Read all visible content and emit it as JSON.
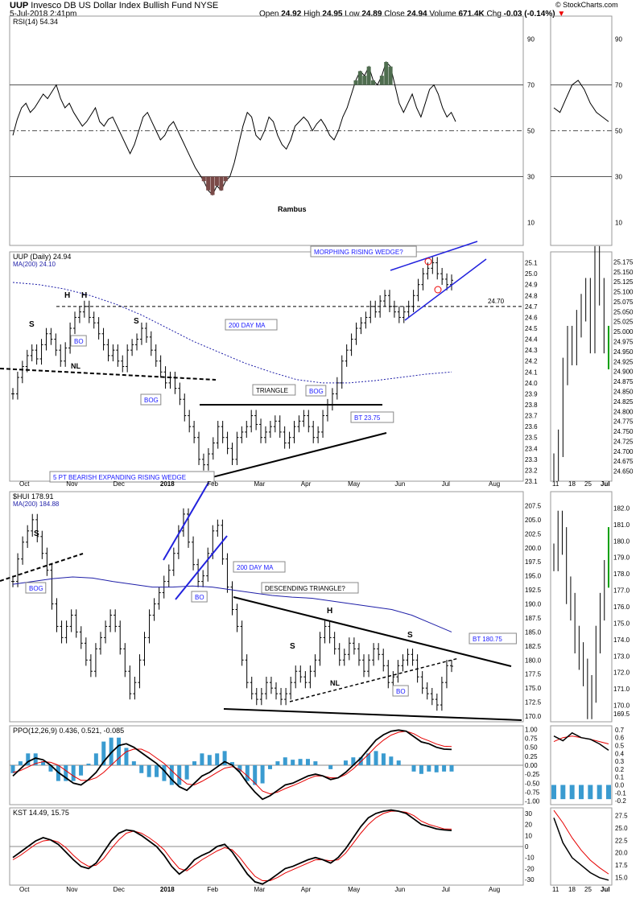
{
  "header": {
    "symbol": "UUP",
    "name": "Invesco DB US Dollar Index Bullish Fund",
    "exchange": "NYSE",
    "date": "5-Jul-2018 2:41pm",
    "open_label": "Open",
    "open": "24.92",
    "high_label": "High",
    "high": "24.95",
    "low_label": "Low",
    "low": "24.89",
    "close_label": "Close",
    "close": "24.94",
    "volume_label": "Volume",
    "volume": "671.4K",
    "chg_label": "Chg",
    "chg": "-0.03 (-0.14%)",
    "watermark": "© StockCharts.com"
  },
  "colors": {
    "price": "#000000",
    "ma200": "#1f1fa8",
    "rsi_fill_up": "#4f6d4f",
    "rsi_fill_down": "#7a4a48",
    "annot_text": "#1a1aff",
    "ppo_signal": "#e60000",
    "hist": "#3a9bd0",
    "grid": "#cccccc",
    "green_bar": "#00a000"
  },
  "x_axis": {
    "ticks": [
      "Oct",
      "Nov",
      "Dec",
      "2018",
      "Feb",
      "Mar",
      "Apr",
      "May",
      "Jun",
      "Jul",
      "Aug"
    ],
    "right_ticks": [
      "11",
      "18",
      "25",
      "Jul"
    ]
  },
  "chart_data": [
    {
      "type": "line",
      "id": "rsi",
      "title": "RSI(14) 54.34",
      "y_ticks": [
        "90",
        "70",
        "50",
        "30",
        "10"
      ],
      "ylim": [
        0,
        100
      ],
      "levels": [
        70,
        50,
        30
      ],
      "values": [
        48,
        55,
        60,
        62,
        58,
        60,
        63,
        66,
        64,
        67,
        70,
        64,
        60,
        62,
        58,
        55,
        52,
        54,
        57,
        60,
        54,
        52,
        55,
        56,
        52,
        48,
        44,
        40,
        44,
        50,
        56,
        58,
        54,
        50,
        46,
        48,
        52,
        54,
        50,
        46,
        42,
        38,
        34,
        31,
        28,
        24,
        22,
        26,
        24,
        28,
        30,
        36,
        44,
        52,
        58,
        56,
        48,
        46,
        50,
        56,
        54,
        48,
        44,
        42,
        46,
        52,
        54,
        56,
        54,
        50,
        53,
        55,
        52,
        48,
        46,
        50,
        56,
        60,
        66,
        72,
        76,
        74,
        78,
        72,
        70,
        74,
        80,
        78,
        70,
        62,
        58,
        62,
        66,
        60,
        56,
        62,
        68,
        70,
        66,
        60,
        56,
        58,
        54
      ],
      "right_values": [
        60,
        58,
        64,
        70,
        72,
        68,
        62,
        58,
        56,
        54
      ],
      "annotations": [
        "Rambus"
      ]
    },
    {
      "type": "ohlc",
      "id": "uup",
      "title": "UUP (Daily) 24.94",
      "ma_label": "MA(200) 24.10",
      "ylim": [
        23.1,
        25.2
      ],
      "y_ticks": [
        "25.1",
        "25.0",
        "24.9",
        "24.8",
        "24.7",
        "24.6",
        "24.5",
        "24.4",
        "24.3",
        "24.2",
        "24.1",
        "24.0",
        "23.9",
        "23.8",
        "23.7",
        "23.6",
        "23.5",
        "23.4",
        "23.3",
        "23.2",
        "23.1"
      ],
      "closes": [
        23.9,
        24.05,
        24.15,
        24.25,
        24.3,
        24.22,
        24.35,
        24.45,
        24.4,
        24.3,
        24.2,
        24.32,
        24.5,
        24.6,
        24.65,
        24.7,
        24.6,
        24.55,
        24.45,
        24.35,
        24.25,
        24.3,
        24.2,
        24.15,
        24.3,
        24.35,
        24.4,
        24.5,
        24.42,
        24.3,
        24.2,
        24.1,
        24.0,
        24.05,
        23.95,
        23.85,
        23.7,
        23.6,
        23.5,
        23.3,
        23.25,
        23.35,
        23.45,
        23.6,
        23.5,
        23.4,
        23.3,
        23.5,
        23.55,
        23.6,
        23.7,
        23.62,
        23.5,
        23.55,
        23.6,
        23.65,
        23.55,
        23.45,
        23.5,
        23.6,
        23.65,
        23.7,
        23.6,
        23.5,
        23.55,
        23.7,
        23.8,
        23.9,
        24.0,
        24.2,
        24.3,
        24.4,
        24.5,
        24.55,
        24.6,
        24.7,
        24.65,
        24.75,
        24.8,
        24.7,
        24.65,
        24.6,
        24.65,
        24.7,
        24.8,
        24.9,
        25.0,
        25.05,
        25.1,
        25.0,
        24.95,
        24.9,
        24.94
      ],
      "ma200": [
        24.92,
        24.9,
        24.86,
        24.8,
        24.72,
        24.62,
        24.5,
        24.38,
        24.28,
        24.18,
        24.1,
        24.03,
        24.0,
        24.0,
        24.02,
        24.05,
        24.08,
        24.1
      ],
      "right_ylim": [
        24.625,
        25.2
      ],
      "right_y_ticks": [
        "25.175",
        "25.150",
        "25.125",
        "25.100",
        "25.075",
        "25.050",
        "25.025",
        "25.000",
        "24.975",
        "24.950",
        "24.925",
        "24.900",
        "24.875",
        "24.850",
        "24.825",
        "24.800",
        "24.775",
        "24.750",
        "24.725",
        "24.700",
        "24.675",
        "24.650"
      ],
      "right_closes": [
        24.66,
        24.72,
        24.9,
        24.98,
        24.95,
        25.02,
        25.06,
        25.1,
        24.98,
        25.18,
        25.1,
        24.98,
        24.94
      ],
      "level_label": "24.70",
      "annotations": [
        "MORPHING RISING WEDGE?",
        "200 DAY MA",
        "BO",
        "BOG",
        "NL",
        "TRIANGLE",
        "BOG",
        "BT 23.75",
        "S",
        "H",
        "H",
        "S"
      ]
    },
    {
      "type": "ohlc",
      "id": "hui",
      "title": "$HUI 178.91",
      "ma_label": "MA(200) 184.88",
      "ylim": [
        169,
        210
      ],
      "y_ticks": [
        "207.5",
        "205.0",
        "202.5",
        "200.0",
        "197.5",
        "195.0",
        "192.5",
        "190.0",
        "187.5",
        "185.0",
        "182.5",
        "180.0",
        "177.5",
        "175.0",
        "172.5",
        "170.0"
      ],
      "closes": [
        194,
        198,
        201,
        203,
        205,
        202,
        199,
        196,
        190,
        186,
        184,
        186,
        188,
        185,
        183,
        180,
        178,
        182,
        184,
        186,
        188,
        186,
        182,
        178,
        174,
        176,
        180,
        184,
        188,
        190,
        192,
        194,
        196,
        199,
        203,
        206,
        201,
        197,
        194,
        195,
        199,
        203,
        204,
        198,
        193,
        189,
        186,
        180,
        176,
        174,
        173,
        174,
        176,
        175,
        174,
        173,
        174,
        176,
        178,
        177,
        176,
        178,
        180,
        184,
        186,
        184,
        182,
        180,
        181,
        183,
        182,
        180,
        178,
        180,
        182,
        181,
        179,
        176,
        177,
        179,
        180,
        181,
        180,
        177,
        175,
        174,
        173,
        172,
        176,
        179,
        178.9
      ],
      "ma200": [
        193.5,
        194,
        194.5,
        194.8,
        194.6,
        194,
        193.5,
        193,
        193,
        193.2,
        193,
        192.5,
        192,
        191.5,
        191.2,
        191,
        190.5,
        190,
        189.5,
        189,
        188,
        186.5,
        185
      ],
      "right_ylim": [
        169,
        183
      ],
      "right_y_ticks": [
        "182.0",
        "181.0",
        "180.0",
        "179.0",
        "178.0",
        "177.0",
        "176.0",
        "175.0",
        "174.0",
        "173.0",
        "172.0",
        "171.0",
        "170.0",
        "169.5"
      ],
      "right_closes": [
        179,
        181,
        180,
        177,
        176,
        174,
        173,
        172,
        170,
        171,
        174,
        176,
        178,
        180
      ],
      "annotations": [
        "5 PT BEARISH EXPANDING RISING WEDGE",
        "200 DAY MA",
        "DESCENDING TRIANGLE?",
        "BT 180.75",
        "BOG",
        "BO",
        "BO",
        "S",
        "H",
        "S",
        "S",
        "NL"
      ]
    },
    {
      "type": "line",
      "id": "ppo",
      "title": "PPO(12,26,9) 0.436, 0.521, -0.085",
      "ylim": [
        -1.1,
        1.1
      ],
      "y_ticks": [
        "1.00",
        "0.75",
        "0.50",
        "0.25",
        "0.00",
        "-0.25",
        "-0.50",
        "-0.75",
        "-1.00"
      ],
      "right_y_ticks": [
        "0.7",
        "0.6",
        "0.5",
        "0.4",
        "0.3",
        "0.2",
        "0.1",
        "0.0",
        "-0.1",
        "-0.2"
      ],
      "ppo": [
        -0.3,
        -0.1,
        0.1,
        0.2,
        0.15,
        0.0,
        -0.2,
        -0.35,
        -0.5,
        -0.55,
        -0.4,
        -0.2,
        0.1,
        0.35,
        0.55,
        0.6,
        0.5,
        0.35,
        0.2,
        0.05,
        -0.15,
        -0.4,
        -0.6,
        -0.7,
        -0.5,
        -0.3,
        -0.2,
        -0.05,
        0.1,
        0.0,
        -0.2,
        -0.5,
        -0.75,
        -0.95,
        -0.85,
        -0.7,
        -0.55,
        -0.5,
        -0.4,
        -0.3,
        -0.25,
        -0.3,
        -0.4,
        -0.35,
        -0.2,
        0.0,
        0.2,
        0.45,
        0.7,
        0.85,
        0.95,
        0.98,
        0.95,
        0.8,
        0.65,
        0.6,
        0.5,
        0.45,
        0.44
      ],
      "signal": [
        -0.2,
        -0.15,
        -0.05,
        0.05,
        0.1,
        0.08,
        0.0,
        -0.15,
        -0.3,
        -0.42,
        -0.42,
        -0.35,
        -0.2,
        0.0,
        0.2,
        0.38,
        0.45,
        0.45,
        0.35,
        0.2,
        0.05,
        -0.15,
        -0.35,
        -0.52,
        -0.55,
        -0.45,
        -0.33,
        -0.2,
        -0.08,
        -0.04,
        -0.12,
        -0.3,
        -0.5,
        -0.72,
        -0.8,
        -0.75,
        -0.65,
        -0.57,
        -0.48,
        -0.38,
        -0.3,
        -0.3,
        -0.35,
        -0.35,
        -0.26,
        -0.1,
        0.1,
        0.3,
        0.52,
        0.7,
        0.84,
        0.92,
        0.95,
        0.88,
        0.76,
        0.68,
        0.59,
        0.53,
        0.52
      ]
    },
    {
      "type": "line",
      "id": "kst",
      "title": "KST 14.49, 15.75",
      "ylim": [
        -35,
        35
      ],
      "y_ticks": [
        "30",
        "25",
        "20",
        "15",
        "10",
        "5",
        "0",
        "-5",
        "-10",
        "-15",
        "-20",
        "-25",
        "-30"
      ],
      "right_y_ticks": [
        "27.5",
        "25.0",
        "22.5",
        "20.0",
        "17.5",
        "15.0"
      ],
      "kst": [
        -10,
        -5,
        0,
        5,
        8,
        6,
        2,
        -5,
        -12,
        -18,
        -20,
        -15,
        -5,
        5,
        12,
        15,
        14,
        10,
        5,
        0,
        -8,
        -18,
        -25,
        -20,
        -12,
        -8,
        -5,
        0,
        2,
        -5,
        -15,
        -25,
        -32,
        -34,
        -30,
        -25,
        -20,
        -18,
        -15,
        -12,
        -10,
        -12,
        -15,
        -10,
        -2,
        8,
        18,
        26,
        30,
        32,
        33,
        32,
        30,
        25,
        20,
        18,
        16,
        15,
        14.5
      ],
      "signal": [
        -12,
        -8,
        -3,
        2,
        5,
        6,
        4,
        -1,
        -8,
        -14,
        -18,
        -17,
        -11,
        -2,
        6,
        12,
        14,
        12,
        8,
        3,
        -3,
        -12,
        -20,
        -22,
        -17,
        -12,
        -8,
        -4,
        -1,
        -3,
        -10,
        -19,
        -27,
        -31,
        -31,
        -28,
        -24,
        -21,
        -18,
        -15,
        -12,
        -12,
        -13,
        -12,
        -6,
        3,
        12,
        20,
        26,
        30,
        32,
        32,
        31,
        28,
        23,
        20,
        18,
        16,
        15.75
      ]
    }
  ]
}
